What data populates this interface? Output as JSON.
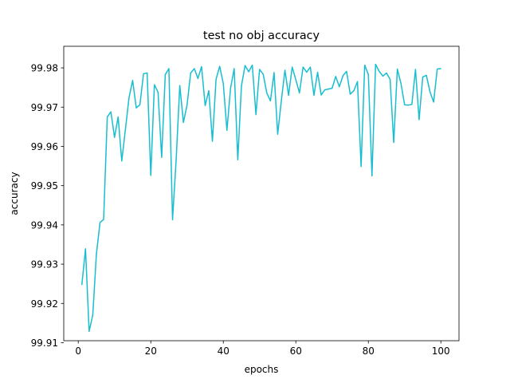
{
  "chart_data": {
    "type": "line",
    "title": "test no obj accuracy",
    "xlabel": "epochs",
    "ylabel": "accuracy",
    "xlim": [
      -4,
      105
    ],
    "ylim": [
      99.9105,
      99.9855
    ],
    "xticks": [
      0,
      20,
      40,
      60,
      80,
      100
    ],
    "yticks": [
      99.91,
      99.92,
      99.93,
      99.94,
      99.95,
      99.96,
      99.97,
      99.98
    ],
    "ytick_labels": [
      "99.91",
      "99.92",
      "99.93",
      "99.94",
      "99.95",
      "99.96",
      "99.97",
      "99.98"
    ],
    "grid": false,
    "color": "#17becf",
    "series": [
      {
        "x": [
          1,
          2,
          3,
          4,
          5,
          6,
          7,
          8,
          9,
          10,
          11,
          12,
          13,
          14,
          15,
          16,
          17,
          18,
          19,
          20,
          21,
          22,
          23,
          24,
          25,
          26,
          27,
          28,
          29,
          30,
          31,
          32,
          33,
          34,
          35,
          36,
          37,
          38,
          39,
          40,
          41,
          42,
          43,
          44,
          45,
          46,
          47,
          48,
          49,
          50,
          51,
          52,
          53,
          54,
          55,
          56,
          57,
          58,
          59,
          60,
          61,
          62,
          63,
          64,
          65,
          66,
          67,
          68,
          69,
          70,
          71,
          72,
          73,
          74,
          75,
          76,
          77,
          78,
          79,
          80,
          81,
          82,
          83,
          84,
          85,
          86,
          87,
          88,
          89,
          90,
          91,
          92,
          93,
          94,
          95,
          96,
          97,
          98,
          99,
          100
        ],
        "y": [
          99.9248,
          99.9339,
          99.9129,
          99.917,
          99.9325,
          99.9406,
          99.9414,
          99.9675,
          99.9688,
          99.9623,
          99.9675,
          99.9563,
          99.9643,
          99.9724,
          99.9768,
          99.9698,
          99.9706,
          99.9785,
          99.9787,
          99.9526,
          99.9757,
          99.9738,
          99.9572,
          99.9783,
          99.9798,
          99.9413,
          99.9566,
          99.9755,
          99.9661,
          99.9705,
          99.9787,
          99.9798,
          99.9773,
          99.9803,
          99.9704,
          99.9742,
          99.9613,
          99.9771,
          99.9804,
          99.976,
          99.9641,
          99.9748,
          99.9798,
          99.9566,
          99.9754,
          99.9806,
          99.979,
          99.9807,
          99.9681,
          99.9796,
          99.9784,
          99.9736,
          99.9716,
          99.9788,
          99.9631,
          99.9716,
          99.9794,
          99.973,
          99.9802,
          99.977,
          99.9736,
          99.9802,
          99.9789,
          99.9802,
          99.973,
          99.9789,
          99.9731,
          99.9744,
          99.9746,
          99.9748,
          99.9778,
          99.9752,
          99.978,
          99.9791,
          99.9733,
          99.9742,
          99.9765,
          99.9549,
          99.9807,
          99.9783,
          99.9525,
          99.9809,
          99.9791,
          99.9779,
          99.9787,
          99.9771,
          99.961,
          99.9797,
          99.976,
          99.9706,
          99.9705,
          99.9707,
          99.9796,
          99.9668,
          99.9777,
          99.9781,
          99.9739,
          99.9713,
          99.9797,
          99.9798
        ]
      }
    ]
  }
}
